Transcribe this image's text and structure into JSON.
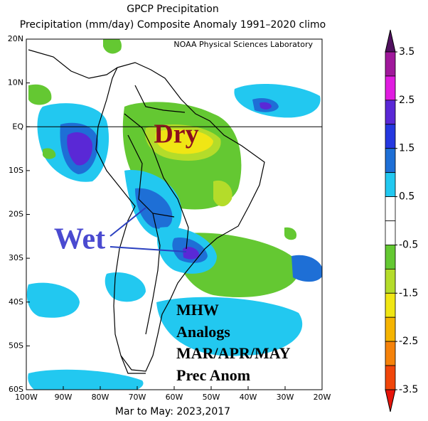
{
  "title": "GPCP Precipitation",
  "subtitle": "Precipitation (mm/day) Composite Anomaly 1991–2020 climo",
  "credit": "NOAA Physical Sciences Laboratory",
  "footer": "Mar to May: 2023,2017",
  "map": {
    "latlim": [
      -60,
      20
    ],
    "lonlim": [
      -100,
      -20
    ],
    "latticks": [
      {
        "value": 20,
        "label": "20N"
      },
      {
        "value": 10,
        "label": "10N"
      },
      {
        "value": 0,
        "label": "EQ"
      },
      {
        "value": -10,
        "label": "10S"
      },
      {
        "value": -20,
        "label": "20S"
      },
      {
        "value": -30,
        "label": "30S"
      },
      {
        "value": -40,
        "label": "40S"
      },
      {
        "value": -50,
        "label": "50S"
      },
      {
        "value": -60,
        "label": "60S"
      }
    ],
    "lonticks": [
      {
        "value": -100,
        "label": "100W"
      },
      {
        "value": -90,
        "label": "90W"
      },
      {
        "value": -80,
        "label": "80W"
      },
      {
        "value": -70,
        "label": "70W"
      },
      {
        "value": -60,
        "label": "60W"
      },
      {
        "value": -50,
        "label": "50W"
      },
      {
        "value": -40,
        "label": "40W"
      },
      {
        "value": -30,
        "label": "30W"
      },
      {
        "value": -20,
        "label": "20W"
      }
    ]
  },
  "annotations": {
    "dry": "Dry",
    "wet": "Wet",
    "box": [
      "MHW",
      "Analogs",
      "MAR/APR/MAY",
      "Prec Anom"
    ]
  },
  "colorbar": {
    "ticks": [
      3.5,
      2.5,
      1.5,
      0.5,
      -0.5,
      -1.5,
      -2.5,
      -3.5
    ],
    "colors": [
      "#50105f",
      "#a0189b",
      "#e01ce0",
      "#5a28d6",
      "#2538e0",
      "#1e6fd6",
      "#22c8f0",
      "#ffffff",
      "#ffffff",
      "#64c832",
      "#b4dc2a",
      "#f0e614",
      "#f5b400",
      "#f5820a",
      "#f0460a",
      "#e6140a"
    ]
  }
}
